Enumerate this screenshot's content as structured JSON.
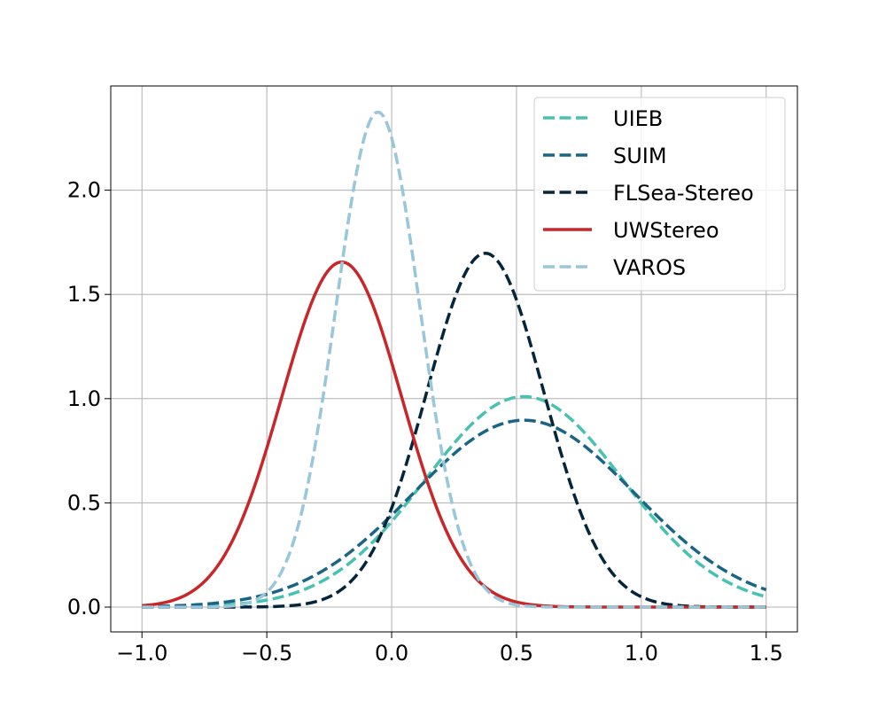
{
  "chart_data": {
    "type": "line",
    "title": "",
    "xlabel": "",
    "ylabel": "",
    "xlim": [
      -1.125,
      1.625
    ],
    "ylim": [
      -0.119,
      2.5
    ],
    "grid": true,
    "legend_position": "top-right",
    "x_ticks": [
      -1.0,
      -0.5,
      0.0,
      0.5,
      1.0,
      1.5
    ],
    "x_tick_labels": [
      "−1.0",
      "−0.5",
      "0.0",
      "0.5",
      "1.0",
      "1.5"
    ],
    "y_ticks": [
      0.0,
      0.5,
      1.0,
      1.5,
      2.0
    ],
    "y_tick_labels": [
      "0.0",
      "0.5",
      "1.0",
      "1.5",
      "2.0"
    ],
    "x_range": [
      -1.0,
      1.5
    ],
    "series": [
      {
        "name": "UIEB",
        "color": "#48c2b0",
        "style": "dashed",
        "distribution": "normal",
        "mean": 0.53,
        "std": 0.395
      },
      {
        "name": "SUIM",
        "color": "#1a6585",
        "style": "dashed",
        "distribution": "normal",
        "mean": 0.53,
        "std": 0.445
      },
      {
        "name": "FLSea-Stereo",
        "color": "#05263a",
        "style": "dashed",
        "distribution": "normal",
        "mean": 0.375,
        "std": 0.235
      },
      {
        "name": "UWStereo",
        "color": "#c8272a",
        "style": "solid",
        "distribution": "normal",
        "mean": -0.2,
        "std": 0.241
      },
      {
        "name": "VAROS",
        "color": "#98c6da",
        "style": "dashed",
        "distribution": "normal",
        "mean": -0.055,
        "std": 0.168
      }
    ]
  }
}
